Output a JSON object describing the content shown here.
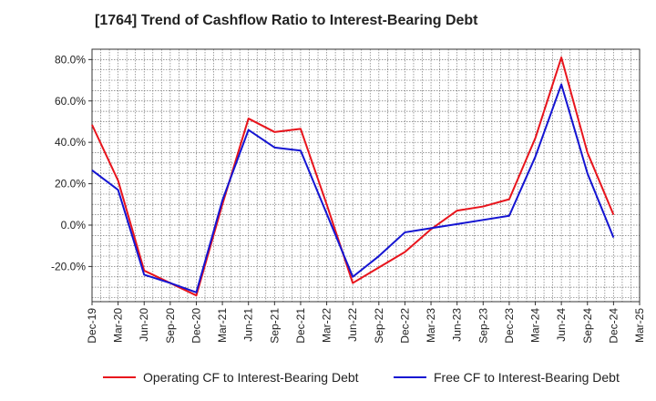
{
  "chart_data": {
    "type": "line",
    "title": "[1764]  Trend of Cashflow Ratio to Interest-Bearing Debt",
    "x": [
      "Dec-19",
      "Mar-20",
      "Jun-20",
      "Sep-20",
      "Dec-20",
      "Mar-21",
      "Jun-21",
      "Sep-21",
      "Dec-21",
      "Mar-22",
      "Jun-22",
      "Sep-22",
      "Dec-22",
      "Mar-23",
      "Jun-23",
      "Sep-23",
      "Dec-23",
      "Mar-24",
      "Jun-24",
      "Sep-24",
      "Dec-24",
      "Mar-25"
    ],
    "xlabel": "",
    "ylabel": "",
    "ylim": [
      -37,
      85
    ],
    "yticks": [
      -20,
      0,
      20,
      40,
      60,
      80
    ],
    "ytick_labels": [
      "-20.0%",
      "0.0%",
      "20.0%",
      "40.0%",
      "60.0%",
      "80.0%"
    ],
    "grid": true,
    "legend_position": "bottom",
    "series": [
      {
        "name": "Operating CF to Interest-Bearing Debt",
        "color": "#e8141c",
        "values": [
          48.5,
          21.5,
          -22,
          -28,
          -34,
          10,
          51.5,
          45,
          46.5,
          10,
          -28,
          -20.5,
          -13,
          -2,
          7,
          9,
          12.5,
          42,
          81,
          35,
          5,
          null
        ]
      },
      {
        "name": "Free CF to Interest-Bearing Debt",
        "color": "#1414d2",
        "values": [
          26.5,
          17,
          -24,
          -28,
          -32.5,
          12,
          46,
          37.5,
          36,
          5.5,
          -25,
          -15,
          -3.5,
          -1.5,
          0.5,
          2.5,
          4.5,
          33,
          68,
          25,
          -6,
          null
        ]
      }
    ]
  }
}
